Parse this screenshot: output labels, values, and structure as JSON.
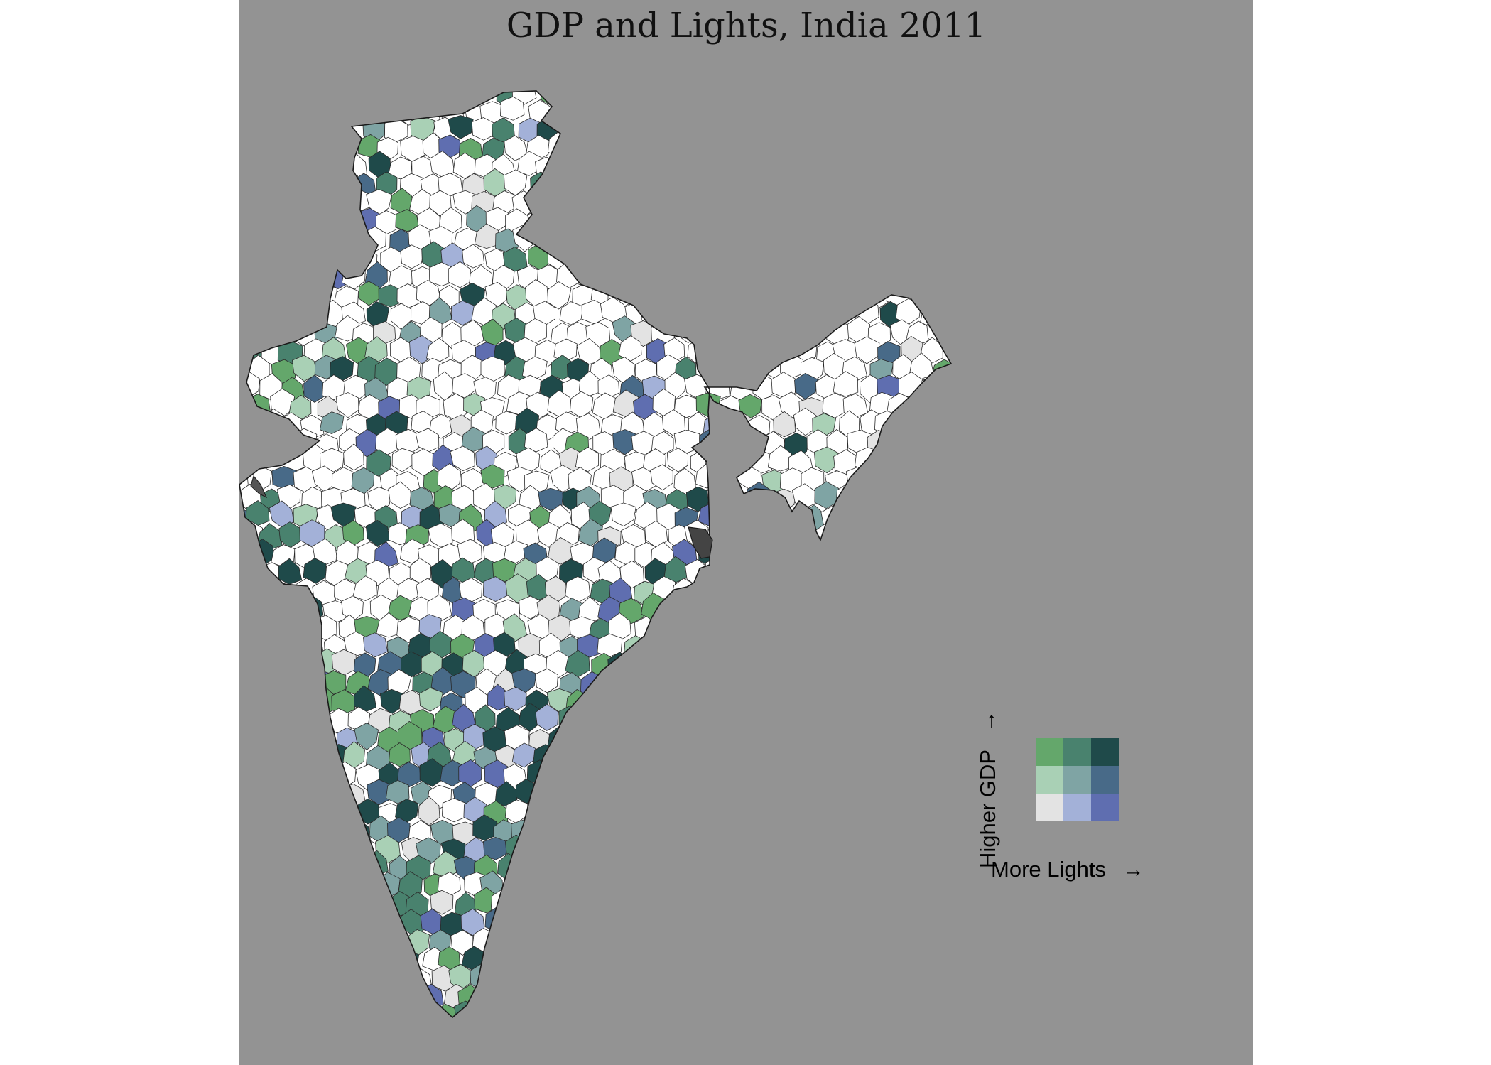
{
  "title": "GDP and Lights, India 2011",
  "legend": {
    "x_label": "More Lights",
    "x_arrow": "→",
    "y_label": "Higher GDP",
    "y_arrow": "→",
    "grid_rows_top_to_bottom": [
      [
        "#64a76b",
        "#49826e",
        "#1f4a4a"
      ],
      [
        "#a9d0b5",
        "#7fa4a4",
        "#486a88"
      ],
      [
        "#e3e3e3",
        "#a3b1d8",
        "#5f6eb0"
      ]
    ]
  },
  "colors": {
    "panel_background": "#939393",
    "land_base": "#ffffff",
    "boundary": "#1a1a1a"
  }
}
